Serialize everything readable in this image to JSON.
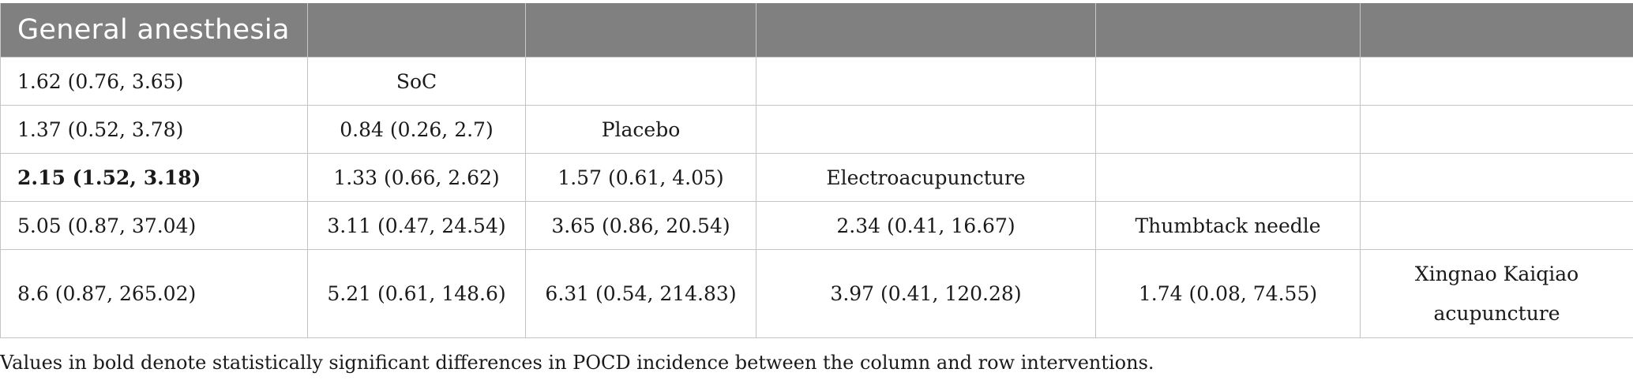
{
  "table": {
    "header": [
      "General anesthesia",
      "",
      "",
      "",
      "",
      ""
    ],
    "rows": [
      [
        "1.62 (0.76, 3.65)",
        "SoC",
        "",
        "",
        "",
        ""
      ],
      [
        "1.37 (0.52, 3.78)",
        "0.84 (0.26, 2.7)",
        "Placebo",
        "",
        "",
        ""
      ],
      [
        "2.15 (1.52, 3.18)",
        "1.33 (0.66, 2.62)",
        "1.57 (0.61, 4.05)",
        "Electroacupuncture",
        "",
        ""
      ],
      [
        "5.05 (0.87, 37.04)",
        "3.11 (0.47, 24.54)",
        "3.65 (0.86, 20.54)",
        "2.34 (0.41, 16.67)",
        "Thumbtack needle",
        ""
      ],
      [
        "8.6 (0.87, 265.02)",
        "5.21 (0.61, 148.6)",
        "6.31 (0.54, 214.83)",
        "3.97 (0.41, 120.28)",
        "1.74 (0.08, 74.55)",
        "Xingnao Kaiqiao acupuncture"
      ]
    ],
    "bold_cells": [
      "rows.2.0"
    ]
  },
  "footnote": "Values in bold denote statistically significant differences in POCD incidence between the column and row interventions."
}
